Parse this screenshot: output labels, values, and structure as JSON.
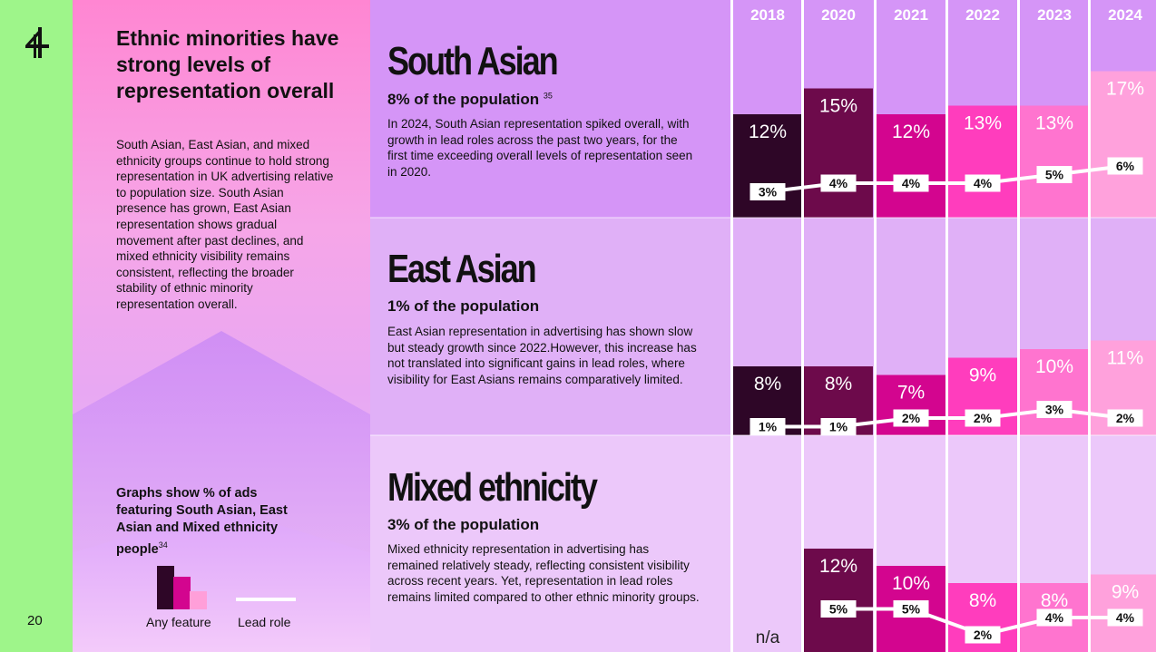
{
  "page_number": "20",
  "intro": {
    "title": "Ethnic minorities have strong levels of representation overall",
    "body": "South Asian, East Asian, and mixed ethnicity groups continue to hold strong representation in UK advertising relative to population size. South Asian presence has grown, East Asian representation shows gradual movement after past declines, and mixed ethnicity visibility remains consistent, reflecting the broader stability of ethnic minority representation overall.",
    "note": "Graphs show % of ads featuring South Asian, East Asian and Mixed ethnicity people",
    "note_ref": "34",
    "legend": {
      "any_feature": "Any feature",
      "lead_role": "Lead role"
    }
  },
  "sections": [
    {
      "title": "South Asian",
      "population": "8% of the population",
      "ref": "35",
      "text": "In 2024, South Asian representation spiked overall, with growth in lead roles across the past two years, for the first time exceeding overall levels of representation seen in 2020."
    },
    {
      "title": "East Asian",
      "population": "1% of the population",
      "ref": "",
      "text": "East Asian representation in advertising has shown slow but steady growth since 2022.However, this increase has not translated into significant gains in lead roles, where visibility for East Asians remains comparatively limited."
    },
    {
      "title": "Mixed ethnicity",
      "population": "3% of the population",
      "ref": "",
      "text": "Mixed ethnicity representation in advertising has remained relatively steady, reflecting consistent visibility across recent years. Yet, representation in lead roles remains limited compared to other ethnic minority groups."
    }
  ],
  "colors": {
    "year_fills": [
      "#2e0627",
      "#6d0a4b",
      "#d3058f",
      "#ff3dbd",
      "#ff74cf",
      "#ffa1dc"
    ],
    "band_bgs": [
      "#d595f7",
      "#e0b0f7",
      "#ecc8fa"
    ],
    "green": "#9ef58a"
  },
  "chart_data": {
    "type": "bar",
    "categories": [
      "2018",
      "2020",
      "2021",
      "2022",
      "2023",
      "2024"
    ],
    "series": [
      {
        "name": "South Asian",
        "any_feature": [
          12,
          15,
          12,
          13,
          13,
          17
        ],
        "lead_role": [
          3,
          4,
          4,
          4,
          5,
          6
        ]
      },
      {
        "name": "East Asian",
        "any_feature": [
          8,
          8,
          7,
          9,
          10,
          11
        ],
        "lead_role": [
          1,
          1,
          2,
          2,
          3,
          2
        ]
      },
      {
        "name": "Mixed ethnicity",
        "any_feature": [
          null,
          12,
          10,
          8,
          8,
          9
        ],
        "lead_role": [
          null,
          5,
          5,
          2,
          4,
          4
        ]
      }
    ],
    "missing_label": "n/a",
    "legend": [
      "Any feature",
      "Lead role"
    ]
  }
}
